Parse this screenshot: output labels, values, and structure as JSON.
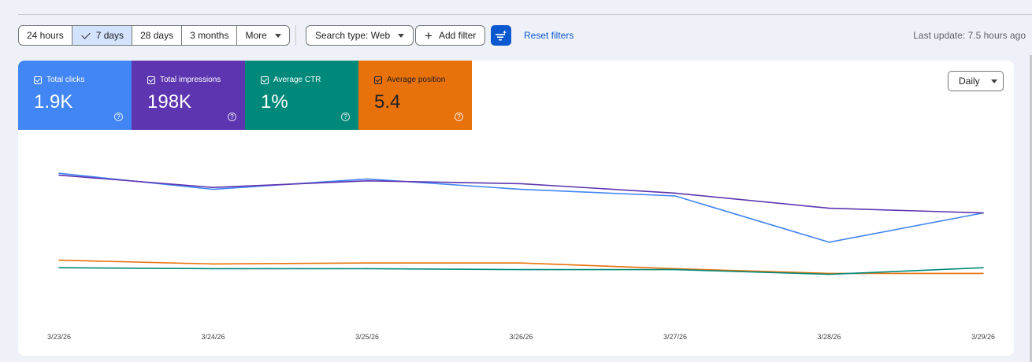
{
  "toolbar": {
    "range_buttons": [
      "24 hours",
      "7 days",
      "28 days",
      "3 months",
      "More"
    ],
    "active_range": "7 days",
    "search_type": "Search type: Web",
    "add_filter": "Add filter",
    "reset_filters": "Reset filters",
    "last_update": "Last update: 7.5 hours ago"
  },
  "metrics": [
    {
      "label": "Total clicks",
      "value": "1.9K",
      "color": "#4285f4",
      "checked": true
    },
    {
      "label": "Total impressions",
      "value": "198K",
      "color": "#5e35b1",
      "checked": true
    },
    {
      "label": "Average CTR",
      "value": "1%",
      "color": "#00897b",
      "checked": true
    },
    {
      "label": "Average position",
      "value": "5.4",
      "color": "#e8710a",
      "checked": true
    }
  ],
  "granularity": "Daily",
  "icons": {
    "help": "help-icon",
    "filter_settings": "filter-settings-icon",
    "add": "plus-icon",
    "dropdown": "chevron-down-icon",
    "check": "check-icon"
  },
  "chart_data": {
    "type": "line",
    "x": [
      "3/23/26",
      "3/24/26",
      "3/25/26",
      "3/26/26",
      "3/27/26",
      "3/28/26",
      "3/29/26"
    ],
    "y_axis_visible": false,
    "grid": false,
    "series": [
      {
        "name": "Total clicks",
        "color": "#4285f4",
        "values": [
          0.82,
          0.735,
          0.79,
          0.735,
          0.7,
          0.455,
          0.61
        ]
      },
      {
        "name": "Total impressions",
        "color": "#5e35b1",
        "values": [
          0.81,
          0.745,
          0.78,
          0.765,
          0.715,
          0.635,
          0.61
        ]
      },
      {
        "name": "Average position",
        "color": "#e8710a",
        "values": [
          0.36,
          0.34,
          0.345,
          0.345,
          0.315,
          0.29,
          0.29
        ]
      },
      {
        "name": "Average CTR",
        "color": "#00897b",
        "values": [
          0.32,
          0.315,
          0.315,
          0.31,
          0.31,
          0.285,
          0.32
        ]
      }
    ]
  }
}
